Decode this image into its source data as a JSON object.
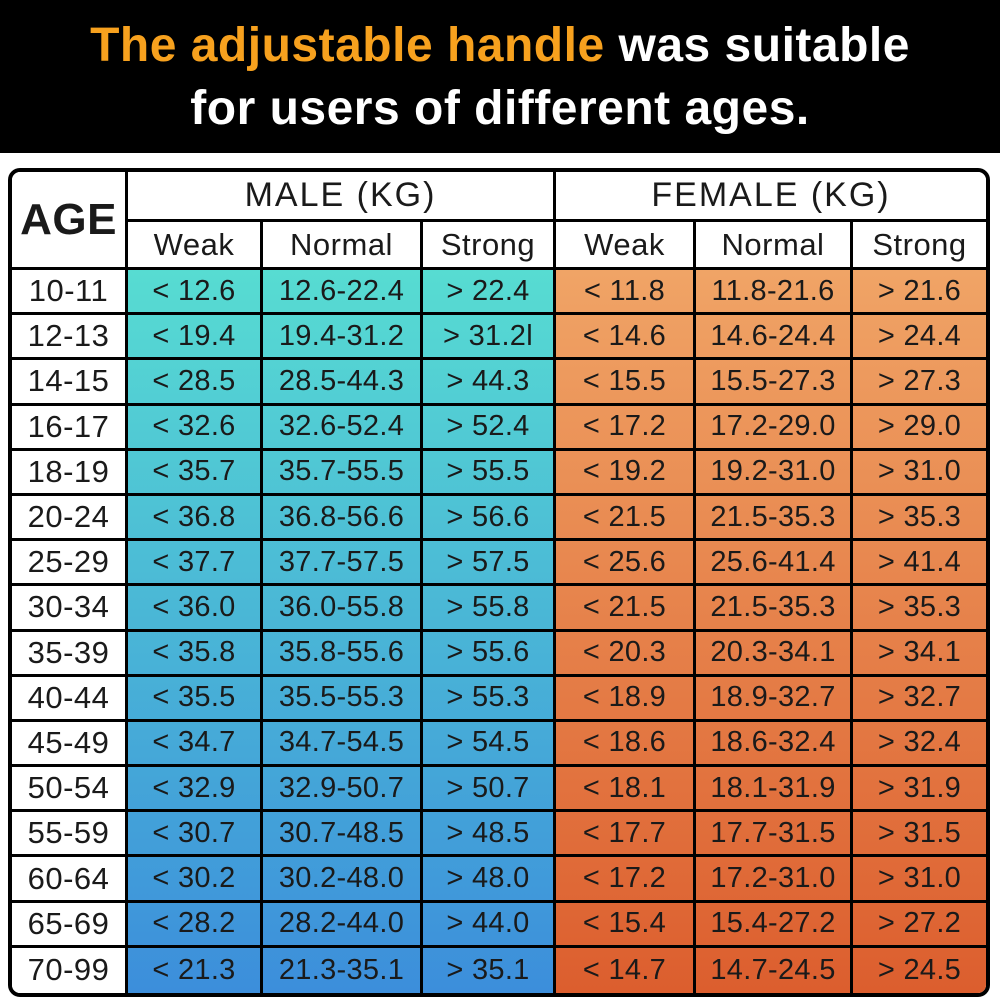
{
  "banner": {
    "title_highlight": "The adjustable handle",
    "title_rest": " was suitable",
    "title_line2": "for users of different ages.",
    "background_color": "#000000",
    "highlight_color": "#F7A11E",
    "text_color": "#FFFFFF"
  },
  "table": {
    "age_header": "AGE",
    "male_header": "MALE (KG)",
    "female_header": "FEMALE (KG)",
    "sub_headers": [
      "Weak",
      "Normal",
      "Strong"
    ],
    "male_gradient_top": "#57DCD2",
    "male_gradient_bottom": "#3C8EDB",
    "female_gradient_top": "#F0A466",
    "female_gradient_bottom": "#DC5E2E",
    "border_color": "#000000"
  },
  "chart_data": {
    "type": "table",
    "title": "The adjustable handle was suitable for users of different ages.",
    "columns": [
      "AGE",
      "MALE Weak (KG)",
      "MALE Normal (KG)",
      "MALE Strong (KG)",
      "FEMALE Weak (KG)",
      "FEMALE Normal (KG)",
      "FEMALE Strong (KG)"
    ],
    "rows": [
      [
        "10-11",
        "< 12.6",
        "12.6-22.4",
        "> 22.4",
        "< 11.8",
        "11.8-21.6",
        "> 21.6"
      ],
      [
        "12-13",
        "< 19.4",
        "19.4-31.2",
        "> 31.2l",
        "< 14.6",
        "14.6-24.4",
        "> 24.4"
      ],
      [
        "14-15",
        "< 28.5",
        "28.5-44.3",
        "> 44.3",
        "< 15.5",
        "15.5-27.3",
        "> 27.3"
      ],
      [
        "16-17",
        "< 32.6",
        "32.6-52.4",
        "> 52.4",
        "< 17.2",
        "17.2-29.0",
        "> 29.0"
      ],
      [
        "18-19",
        "< 35.7",
        "35.7-55.5",
        "> 55.5",
        "< 19.2",
        "19.2-31.0",
        "> 31.0"
      ],
      [
        "20-24",
        "< 36.8",
        "36.8-56.6",
        "> 56.6",
        "< 21.5",
        "21.5-35.3",
        "> 35.3"
      ],
      [
        "25-29",
        "< 37.7",
        "37.7-57.5",
        "> 57.5",
        "< 25.6",
        "25.6-41.4",
        "> 41.4"
      ],
      [
        "30-34",
        "< 36.0",
        "36.0-55.8",
        "> 55.8",
        "< 21.5",
        "21.5-35.3",
        "> 35.3"
      ],
      [
        "35-39",
        "< 35.8",
        "35.8-55.6",
        "> 55.6",
        "< 20.3",
        "20.3-34.1",
        "> 34.1"
      ],
      [
        "40-44",
        "< 35.5",
        "35.5-55.3",
        "> 55.3",
        "< 18.9",
        "18.9-32.7",
        "> 32.7"
      ],
      [
        "45-49",
        "< 34.7",
        "34.7-54.5",
        "> 54.5",
        "< 18.6",
        "18.6-32.4",
        "> 32.4"
      ],
      [
        "50-54",
        "< 32.9",
        "32.9-50.7",
        "> 50.7",
        "< 18.1",
        "18.1-31.9",
        "> 31.9"
      ],
      [
        "55-59",
        "< 30.7",
        "30.7-48.5",
        "> 48.5",
        "< 17.7",
        "17.7-31.5",
        "> 31.5"
      ],
      [
        "60-64",
        "< 30.2",
        "30.2-48.0",
        "> 48.0",
        "< 17.2",
        "17.2-31.0",
        "> 31.0"
      ],
      [
        "65-69",
        "< 28.2",
        "28.2-44.0",
        "> 44.0",
        "< 15.4",
        "15.4-27.2",
        "> 27.2"
      ],
      [
        "70-99",
        "< 21.3",
        "21.3-35.1",
        "> 35.1",
        "< 14.7",
        "14.7-24.5",
        "> 24.5"
      ]
    ]
  }
}
